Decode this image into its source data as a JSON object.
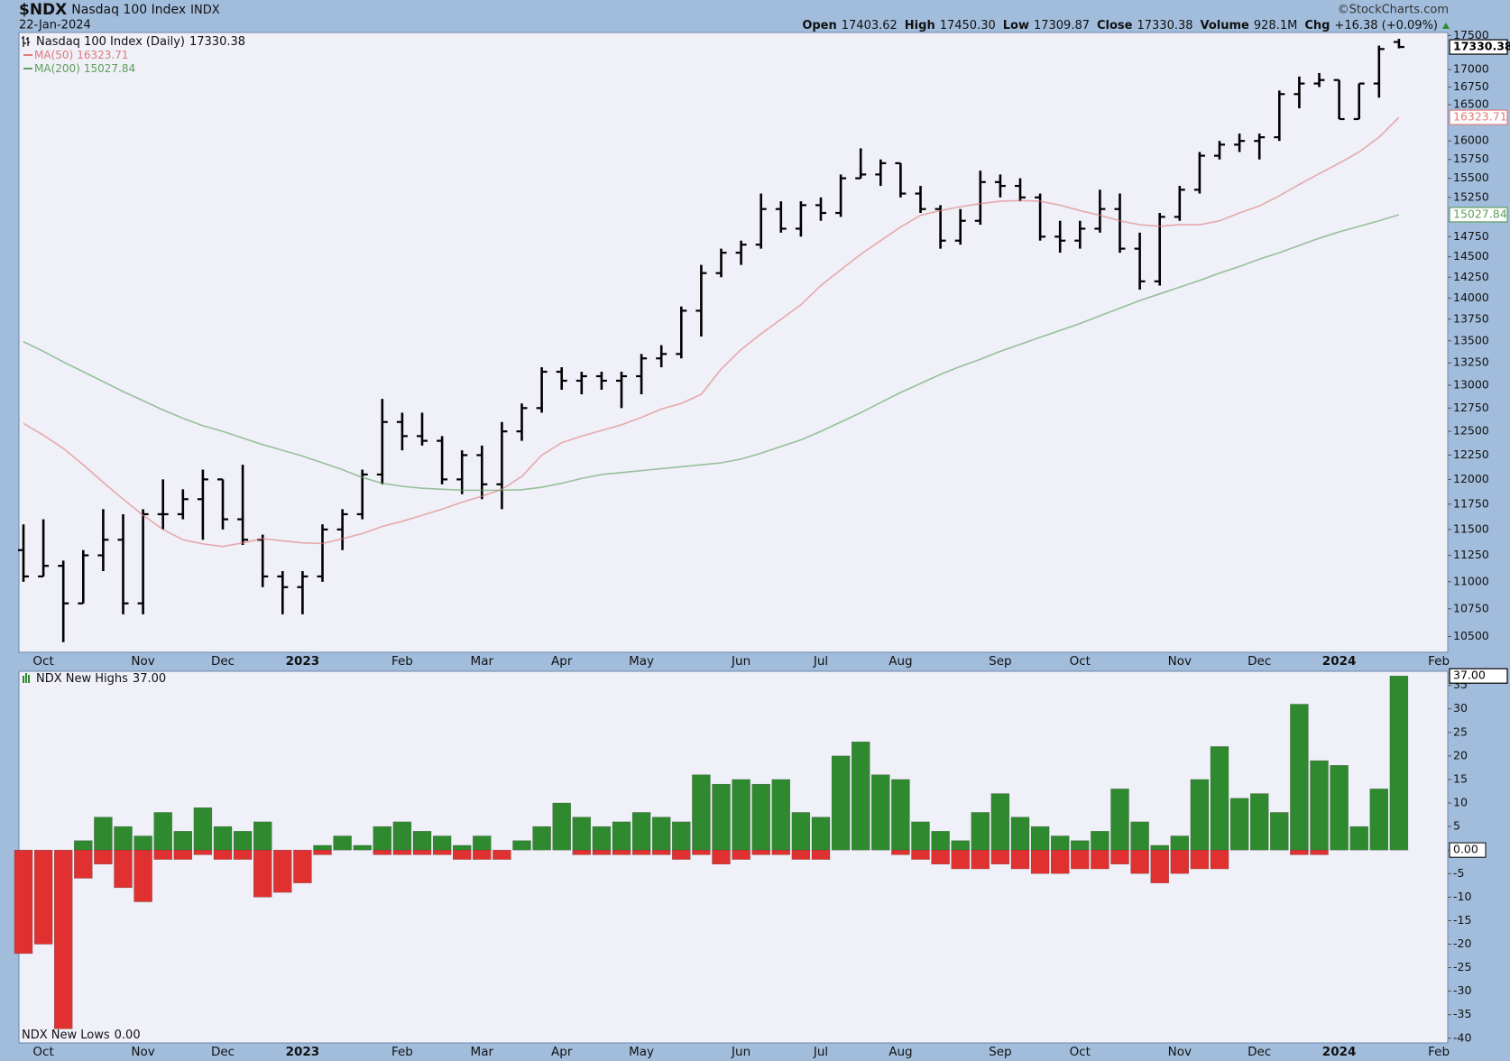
{
  "header": {
    "symbol": "$NDX",
    "name": "Nasdaq 100 Index",
    "exchange": "INDX",
    "date": "22-Jan-2024",
    "source": "©StockCharts.com",
    "open_label": "Open",
    "open": "17403.62",
    "high_label": "High",
    "high": "17450.30",
    "low_label": "Low",
    "low": "17309.87",
    "close_label": "Close",
    "close": "17330.38",
    "volume_label": "Volume",
    "volume": "928.1M",
    "chg_label": "Chg",
    "chg": "+16.38 (+0.09%)"
  },
  "chart_data": [
    {
      "type": "ohlc",
      "title": "Nasdaq 100 Index (Daily)",
      "color": "#000000",
      "log_scale": true,
      "grid": false,
      "categories": [
        null,
        "Oct",
        null,
        null,
        null,
        null,
        "Nov",
        null,
        null,
        null,
        "Dec",
        null,
        null,
        null,
        "2023",
        null,
        null,
        null,
        null,
        "Feb",
        null,
        null,
        null,
        "Mar",
        null,
        null,
        null,
        "Apr",
        null,
        null,
        null,
        "May",
        null,
        null,
        null,
        null,
        "Jun",
        null,
        null,
        null,
        "Jul",
        null,
        null,
        null,
        "Aug",
        null,
        null,
        null,
        null,
        "Sep",
        null,
        null,
        null,
        "Oct",
        null,
        null,
        null,
        null,
        "Nov",
        null,
        null,
        null,
        "Dec",
        null,
        null,
        null,
        "2024",
        null,
        null,
        null,
        null,
        "Feb"
      ],
      "open": [
        11300,
        11050,
        11150,
        10800,
        11250,
        11400,
        10800,
        11650,
        11650,
        11800,
        12000,
        11600,
        11400,
        11050,
        10950,
        11050,
        11500,
        11650,
        12050,
        12600,
        12450,
        12400,
        12000,
        12250,
        11950,
        12500,
        12750,
        13150,
        13050,
        13100,
        13050,
        13100,
        13300,
        13350,
        13850,
        14300,
        14550,
        14650,
        15100,
        14850,
        15150,
        15050,
        15500,
        15550,
        15700,
        15300,
        15100,
        14700,
        14950,
        15450,
        15400,
        15250,
        14750,
        14700,
        14850,
        15100,
        14600,
        14200,
        15000,
        15350,
        15800,
        15950,
        16000,
        16050,
        16650,
        16800,
        16850,
        16300,
        16800,
        17403.62,
        null,
        null
      ],
      "high": [
        11550,
        11600,
        11200,
        11300,
        11700,
        11650,
        11700,
        12000,
        11900,
        12100,
        12000,
        12150,
        11450,
        11100,
        11100,
        11550,
        11700,
        12100,
        12850,
        12700,
        12700,
        12450,
        12300,
        12350,
        12600,
        12800,
        13200,
        13200,
        13150,
        13150,
        13150,
        13350,
        13450,
        13900,
        14400,
        14600,
        14700,
        15300,
        15200,
        15200,
        15250,
        15550,
        15900,
        15750,
        15700,
        15400,
        15150,
        15100,
        15600,
        15550,
        15500,
        15300,
        14950,
        14950,
        15350,
        15300,
        14800,
        15050,
        15400,
        15850,
        16000,
        16100,
        16100,
        16700,
        16900,
        16950,
        16850,
        16800,
        17350,
        17450.3,
        null,
        null
      ],
      "low": [
        11000,
        11050,
        10450,
        10800,
        11100,
        10700,
        10700,
        11500,
        11600,
        11400,
        11500,
        11350,
        10950,
        10700,
        10700,
        11000,
        11300,
        11600,
        11950,
        12300,
        12350,
        11950,
        11850,
        11800,
        11700,
        12400,
        12700,
        12950,
        12900,
        12950,
        12750,
        12900,
        13200,
        13300,
        13550,
        14250,
        14400,
        14600,
        14800,
        14750,
        14950,
        15000,
        15500,
        15400,
        15250,
        15050,
        14600,
        14650,
        14900,
        15250,
        15200,
        14700,
        14550,
        14600,
        14800,
        14550,
        14100,
        14150,
        14950,
        15300,
        15750,
        15850,
        15750,
        16000,
        16450,
        16750,
        16300,
        16300,
        16600,
        17309.87,
        null,
        null
      ],
      "close": [
        11050,
        11150,
        10800,
        11250,
        11400,
        10800,
        11650,
        11650,
        11800,
        12000,
        11600,
        11400,
        11050,
        10950,
        11050,
        11500,
        11650,
        12050,
        12600,
        12450,
        12400,
        12000,
        12250,
        11950,
        12500,
        12750,
        13150,
        13050,
        13100,
        13050,
        13100,
        13300,
        13350,
        13850,
        14300,
        14550,
        14650,
        15100,
        14850,
        15150,
        15050,
        15500,
        15550,
        15700,
        15300,
        15100,
        14700,
        14950,
        15450,
        15400,
        15250,
        14750,
        14700,
        14850,
        15100,
        14600,
        14200,
        15000,
        15350,
        15800,
        15950,
        16000,
        16050,
        16650,
        16800,
        16850,
        16300,
        16800,
        17300,
        17330.38,
        null,
        null
      ],
      "series": [
        {
          "name": "MA(50)",
          "color": "#e07a7a",
          "values": [
            12585,
            12460,
            12320,
            12150,
            11970,
            11800,
            11640,
            11500,
            11400,
            11360,
            11335,
            11370,
            11410,
            11390,
            11370,
            11363,
            11410,
            11460,
            11530,
            11580,
            11640,
            11700,
            11770,
            11830,
            11900,
            12030,
            12250,
            12380,
            12450,
            12510,
            12570,
            12650,
            12740,
            12800,
            12900,
            13180,
            13400,
            13580,
            13750,
            13920,
            14150,
            14340,
            14530,
            14700,
            14870,
            15020,
            15080,
            15130,
            15170,
            15200,
            15210,
            15200,
            15150,
            15080,
            15020,
            14950,
            14900,
            14880,
            14900,
            14900,
            14950,
            15050,
            15140,
            15270,
            15420,
            15560,
            15700,
            15850,
            16050,
            16323.71,
            null,
            null
          ]
        },
        {
          "name": "MA(200)",
          "color": "#5e9e5e",
          "values": [
            13490,
            13380,
            13260,
            13150,
            13040,
            12930,
            12830,
            12730,
            12640,
            12560,
            12500,
            12430,
            12360,
            12300,
            12240,
            12170,
            12100,
            12020,
            11960,
            11930,
            11910,
            11900,
            11890,
            11890,
            11890,
            11895,
            11920,
            11960,
            12010,
            12050,
            12070,
            12090,
            12110,
            12130,
            12150,
            12170,
            12210,
            12270,
            12340,
            12410,
            12500,
            12600,
            12700,
            12810,
            12920,
            13020,
            13120,
            13210,
            13290,
            13380,
            13460,
            13540,
            13620,
            13700,
            13790,
            13880,
            13970,
            14050,
            14130,
            14210,
            14300,
            14380,
            14470,
            14550,
            14640,
            14730,
            14810,
            14880,
            14950,
            15027.84,
            null,
            null
          ]
        }
      ],
      "ylim": [
        10360,
        17545
      ],
      "yticks": [
        10500,
        10750,
        11000,
        11250,
        11500,
        11750,
        12000,
        12250,
        12500,
        12750,
        13000,
        13250,
        13500,
        13750,
        14000,
        14250,
        14500,
        14750,
        15250,
        15500,
        15750,
        16000,
        16500,
        16750,
        17000,
        17500
      ]
    },
    {
      "type": "bar",
      "grid": false,
      "categories": [
        null,
        "Oct",
        null,
        null,
        null,
        null,
        "Nov",
        null,
        null,
        null,
        "Dec",
        null,
        null,
        null,
        "2023",
        null,
        null,
        null,
        null,
        "Feb",
        null,
        null,
        null,
        "Mar",
        null,
        null,
        null,
        "Apr",
        null,
        null,
        null,
        "May",
        null,
        null,
        null,
        null,
        "Jun",
        null,
        null,
        null,
        "Jul",
        null,
        null,
        null,
        "Aug",
        null,
        null,
        null,
        null,
        "Sep",
        null,
        null,
        null,
        "Oct",
        null,
        null,
        null,
        null,
        "Nov",
        null,
        null,
        null,
        "Dec",
        null,
        null,
        null,
        "2024",
        null,
        null,
        null,
        null,
        "Feb"
      ],
      "series": [
        {
          "name": "NDX New Highs",
          "color": "#2f8a2f",
          "current_label": "37.00",
          "values": [
            0,
            0,
            0,
            2,
            7,
            5,
            3,
            8,
            4,
            9,
            5,
            4,
            6,
            0,
            0,
            1,
            3,
            1,
            5,
            6,
            4,
            3,
            1,
            3,
            0,
            2,
            5,
            10,
            7,
            5,
            6,
            8,
            7,
            6,
            16,
            14,
            15,
            14,
            15,
            8,
            7,
            20,
            23,
            16,
            15,
            6,
            4,
            2,
            8,
            12,
            7,
            5,
            3,
            2,
            4,
            13,
            6,
            1,
            3,
            15,
            22,
            11,
            12,
            8,
            31,
            19,
            18,
            5,
            13,
            37,
            null,
            null
          ]
        },
        {
          "name": "NDX New Lows",
          "color": "#e03030",
          "current_label": "0.00",
          "values": [
            -22,
            -20,
            -38,
            -6,
            -3,
            -8,
            -11,
            -2,
            -2,
            -1,
            -2,
            -2,
            -10,
            -9,
            -7,
            -1,
            0,
            0,
            -1,
            -1,
            -1,
            -1,
            -2,
            -2,
            -2,
            0,
            0,
            0,
            -1,
            -1,
            -1,
            -1,
            -1,
            -2,
            -1,
            -3,
            -2,
            -1,
            -1,
            -2,
            -2,
            0,
            0,
            0,
            -1,
            -2,
            -3,
            -4,
            -4,
            -3,
            -4,
            -5,
            -5,
            -4,
            -4,
            -3,
            -5,
            -7,
            -5,
            -4,
            -4,
            0,
            0,
            0,
            -1,
            -1,
            0,
            0,
            0,
            0,
            null,
            null
          ]
        }
      ],
      "ylim": [
        -41,
        38
      ],
      "yticks": [
        -40,
        -35,
        -30,
        -25,
        -20,
        -15,
        -10,
        -5,
        {
          "value": 0,
          "label": "0.00"
        },
        5,
        10,
        15,
        20,
        25,
        30,
        35
      ]
    }
  ]
}
